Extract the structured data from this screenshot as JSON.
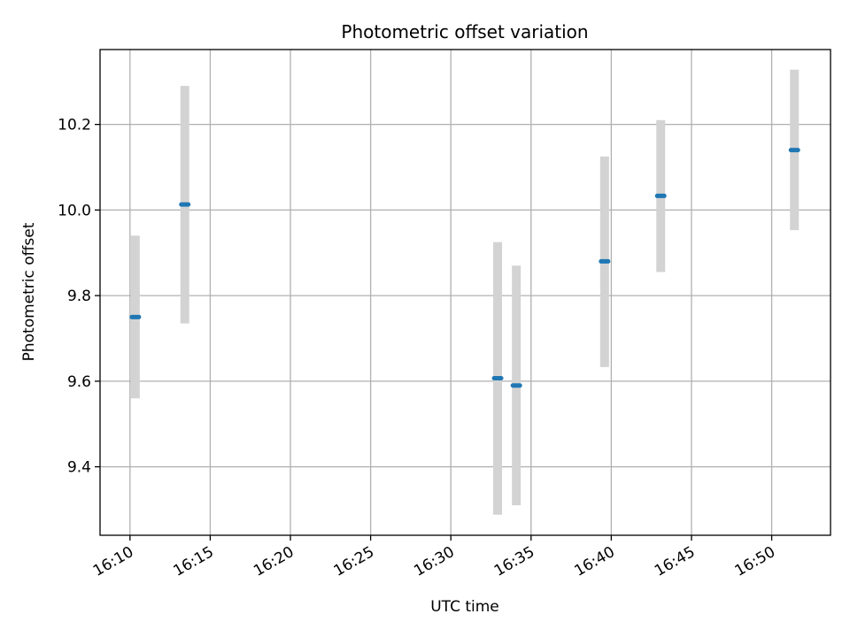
{
  "chart_data": {
    "type": "scatter",
    "title": "Photometric offset variation",
    "xlabel": "UTC time",
    "ylabel": "Photometric offset",
    "x_ticks": [
      "16:10",
      "16:15",
      "16:20",
      "16:25",
      "16:30",
      "16:35",
      "16:40",
      "16:45",
      "16:50"
    ],
    "y_ticks": [
      "9.4",
      "9.6",
      "9.8",
      "10.0",
      "10.2"
    ],
    "xlim": [
      "16:08:08",
      "16:53:40"
    ],
    "ylim": [
      9.24,
      10.375
    ],
    "grid": true,
    "points": [
      {
        "x": "16:10:20",
        "y": 9.75,
        "lower": 9.56,
        "upper": 9.94
      },
      {
        "x": "16:13:25",
        "y": 10.013,
        "lower": 9.735,
        "upper": 10.29
      },
      {
        "x": "16:32:55",
        "y": 9.607,
        "lower": 9.288,
        "upper": 9.925
      },
      {
        "x": "16:34:05",
        "y": 9.59,
        "lower": 9.31,
        "upper": 9.87
      },
      {
        "x": "16:39:35",
        "y": 9.88,
        "lower": 9.633,
        "upper": 10.125
      },
      {
        "x": "16:43:05",
        "y": 10.033,
        "lower": 9.855,
        "upper": 10.21
      },
      {
        "x": "16:51:25",
        "y": 10.14,
        "lower": 9.953,
        "upper": 10.328
      }
    ],
    "colors": {
      "point": "#1f77b4",
      "errorbar": "#d3d3d3",
      "grid": "#b0b0b0"
    }
  }
}
